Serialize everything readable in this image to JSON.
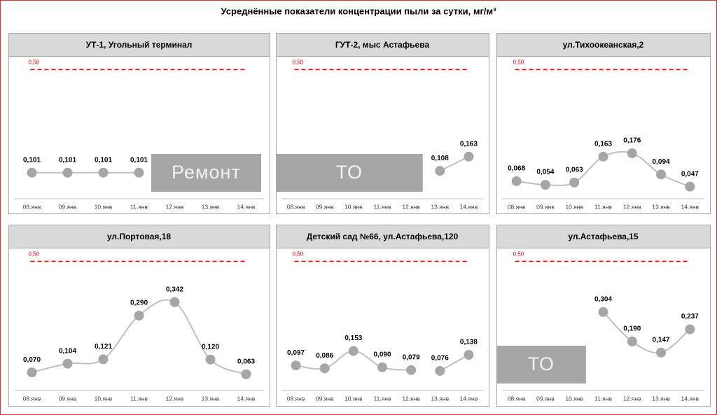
{
  "title": "Усреднённые показатели концентрации пыли за сутки, мг/м³",
  "chart_data": [
    {
      "type": "line",
      "title": "УТ-1, Угольный терминал",
      "categories": [
        "08.янв",
        "09.янв",
        "10.янв",
        "11.янв",
        "12.янв",
        "13.янв",
        "14.янв"
      ],
      "series": [
        {
          "color": "#a6a6a6",
          "values": [
            0.101,
            0.101,
            0.101,
            0.101,
            null,
            null,
            null
          ],
          "value_labels": [
            "0,101",
            "0,101",
            "0,101",
            "0,101",
            null,
            null,
            null
          ]
        }
      ],
      "ylim": [
        0,
        0.55
      ],
      "threshold": {
        "value": 0.5,
        "label": "0,50"
      },
      "annotation": "Ремонт"
    },
    {
      "type": "line",
      "title": "ГУТ-2, мыс Астафьева",
      "categories": [
        "08.янв",
        "09.янв",
        "10.янв",
        "11.янв",
        "12.янв",
        "13.янв",
        "14.янв"
      ],
      "series": [
        {
          "color": "#a6a6a6",
          "values": [
            null,
            null,
            null,
            null,
            null,
            0.108,
            0.163
          ],
          "value_labels": [
            null,
            null,
            null,
            null,
            null,
            "0,108",
            "0,163"
          ]
        }
      ],
      "ylim": [
        0,
        0.55
      ],
      "threshold": {
        "value": 0.5,
        "label": "0,50"
      },
      "annotation": "ТО"
    },
    {
      "type": "line",
      "title": "ул.Тихоокеанская,2",
      "categories": [
        "08.янв",
        "09.янв",
        "10.янв",
        "11.янв",
        "12.янв",
        "13.янв",
        "14.янв"
      ],
      "series": [
        {
          "color": "#a6a6a6",
          "values": [
            0.068,
            0.054,
            0.063,
            0.163,
            0.176,
            0.094,
            0.047
          ],
          "value_labels": [
            "0,068",
            "0,054",
            "0,063",
            "0,163",
            "0,176",
            "0,094",
            "0,047"
          ]
        }
      ],
      "ylim": [
        0,
        0.55
      ],
      "threshold": {
        "value": 0.5,
        "label": "0,50"
      }
    },
    {
      "type": "line",
      "title": "ул.Портовая,18",
      "categories": [
        "08.янв",
        "09.янв",
        "10.янв",
        "11.янв",
        "12.янв",
        "13.янв",
        "14.янв"
      ],
      "series": [
        {
          "color": "#a6a6a6",
          "values": [
            0.07,
            0.104,
            0.121,
            0.29,
            0.342,
            0.12,
            0.063
          ],
          "value_labels": [
            "0,070",
            "0,104",
            "0,121",
            "0,290",
            "0,342",
            "0,120",
            "0,063"
          ]
        }
      ],
      "ylim": [
        0,
        0.55
      ],
      "threshold": {
        "value": 0.5,
        "label": "0,50"
      }
    },
    {
      "type": "line",
      "title": "Детский сад №66, ул.Астафьева,120",
      "categories": [
        "08.янв",
        "09.янв",
        "10.янв",
        "11.янв",
        "12.янв",
        "13.янв",
        "14.янв"
      ],
      "series": [
        {
          "color": "#a6a6a6",
          "values": [
            0.097,
            0.086,
            0.153,
            0.09,
            0.079,
            null,
            null
          ],
          "value_labels": [
            "0,097",
            "0,086",
            "0,153",
            "0,090",
            "0,079",
            null,
            null
          ]
        },
        {
          "color": "#a6a6a6",
          "values": [
            null,
            null,
            null,
            null,
            null,
            0.076,
            0.138
          ],
          "value_labels": [
            null,
            null,
            null,
            null,
            null,
            "0,076",
            "0,138"
          ]
        }
      ],
      "ylim": [
        0,
        0.55
      ],
      "threshold": {
        "value": 0.5,
        "label": "0,50"
      }
    },
    {
      "type": "line",
      "title": "ул.Астафьева,15",
      "categories": [
        "08.янв",
        "09.янв",
        "10.янв",
        "11.янв",
        "12.янв",
        "13.янв",
        "14.янв"
      ],
      "series": [
        {
          "color": "#a6a6a6",
          "values": [
            null,
            null,
            null,
            0.304,
            0.19,
            0.147,
            0.237
          ],
          "value_labels": [
            null,
            null,
            null,
            "0,304",
            "0,190",
            "0,147",
            "0,237"
          ]
        }
      ],
      "ylim": [
        0,
        0.55
      ],
      "threshold": {
        "value": 0.5,
        "label": "0,50"
      },
      "annotation": "ТО"
    }
  ]
}
